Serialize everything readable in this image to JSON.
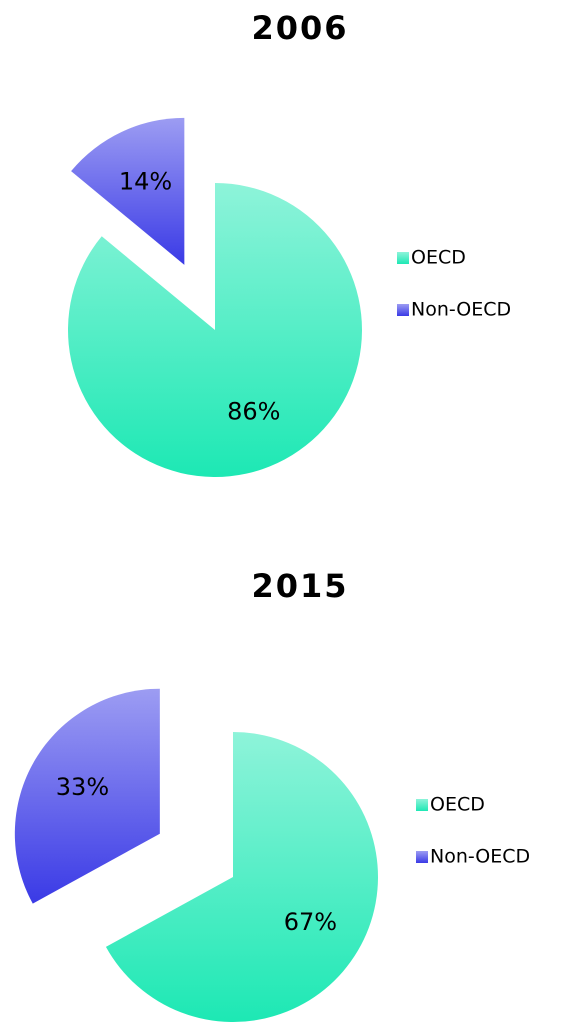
{
  "chart_data": [
    {
      "type": "pie",
      "title": "2006",
      "categories": [
        "OECD",
        "Non-OECD"
      ],
      "values": [
        86,
        14
      ],
      "value_labels": [
        "86%",
        "14%"
      ],
      "colors": [
        "#1de8b4",
        "#3a3ae6"
      ]
    },
    {
      "type": "pie",
      "title": "2015",
      "categories": [
        "OECD",
        "Non-OECD"
      ],
      "values": [
        67,
        33
      ],
      "value_labels": [
        "67%",
        "33%"
      ],
      "colors": [
        "#1de8b4",
        "#3a3ae6"
      ]
    }
  ]
}
